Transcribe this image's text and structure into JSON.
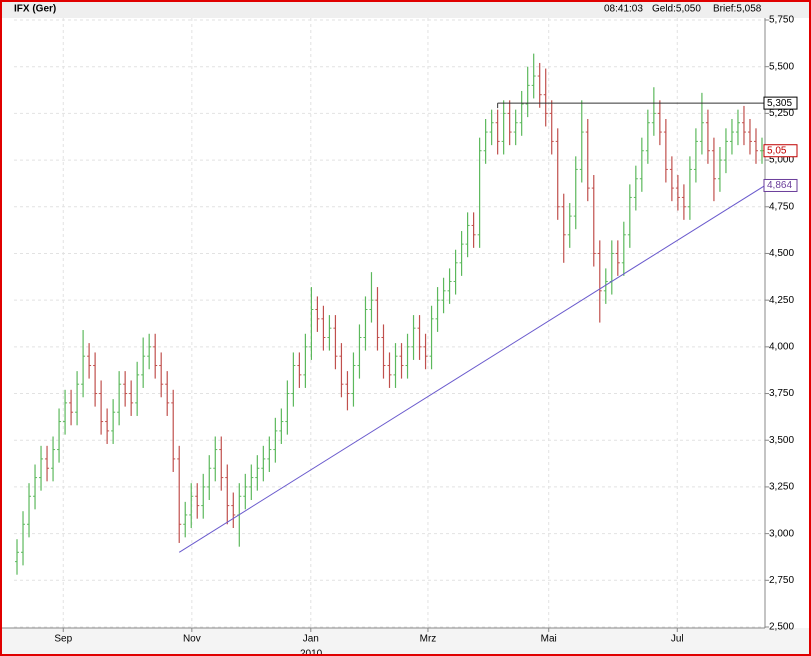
{
  "chart_data": {
    "type": "ohlc",
    "title": "IFX (Ger)",
    "time": "08:41:03",
    "bid": "Geld:5,050",
    "ask": "Brief:5,058",
    "year_label": "2010",
    "up_color": "#5cb85c",
    "down_color": "#c0504d",
    "grid": true,
    "xlim": [
      -0.5,
      124.5
    ],
    "ylim": [
      2.5,
      5.75
    ],
    "yticks": [
      {
        "value": 2.5,
        "label": "2,500"
      },
      {
        "value": 2.75,
        "label": "2,750"
      },
      {
        "value": 3,
        "label": "3,000"
      },
      {
        "value": 3.25,
        "label": "3,250"
      },
      {
        "value": 3.5,
        "label": "3,500"
      },
      {
        "value": 3.75,
        "label": "3,750"
      },
      {
        "value": 4,
        "label": "4,000"
      },
      {
        "value": 4.25,
        "label": "4,250"
      },
      {
        "value": 4.5,
        "label": "4,500"
      },
      {
        "value": 4.75,
        "label": "4,750"
      },
      {
        "value": 5,
        "label": "5,000"
      },
      {
        "value": 5.25,
        "label": "5,250"
      },
      {
        "value": 5.5,
        "label": "5,500"
      },
      {
        "value": 5.75,
        "label": "5,750"
      }
    ],
    "xticks": [
      {
        "value": 7.7,
        "label": "Sep"
      },
      {
        "value": 29.1,
        "label": "Nov"
      },
      {
        "value": 48.9,
        "label": "Jan"
      },
      {
        "value": 68.4,
        "label": "Mrz"
      },
      {
        "value": 88.5,
        "label": "Mai"
      },
      {
        "value": 109.9,
        "label": "Jul"
      }
    ],
    "trendline": {
      "x": [
        27,
        124.5
      ],
      "y": [
        2.9,
        4.864
      ],
      "color": "#6a5acd"
    },
    "resistance": {
      "x": [
        80,
        124.5
      ],
      "y": 5.305,
      "color": "#333333"
    },
    "price_labels": [
      {
        "value": 5.305,
        "label": "5,305",
        "color": "#000000"
      },
      {
        "value": 5.05,
        "label": "5,05",
        "color": "#c00000"
      },
      {
        "value": 4.864,
        "label": "4,864",
        "color": "#6a3d9a"
      }
    ],
    "x": [
      0,
      1,
      2,
      3,
      4,
      5,
      6,
      7,
      8,
      9,
      10,
      11,
      12,
      13,
      14,
      15,
      16,
      17,
      18,
      19,
      20,
      21,
      22,
      23,
      24,
      25,
      26,
      27,
      28,
      29,
      30,
      31,
      32,
      33,
      34,
      35,
      36,
      37,
      38,
      39,
      40,
      41,
      42,
      43,
      44,
      45,
      46,
      47,
      48,
      49,
      50,
      51,
      52,
      53,
      54,
      55,
      56,
      57,
      58,
      59,
      60,
      61,
      62,
      63,
      64,
      65,
      66,
      67,
      68,
      69,
      70,
      71,
      72,
      73,
      74,
      75,
      76,
      77,
      78,
      79,
      80,
      81,
      82,
      83,
      84,
      85,
      86,
      87,
      88,
      89,
      90,
      91,
      92,
      93,
      94,
      95,
      96,
      97,
      98,
      99,
      100,
      101,
      102,
      103,
      104,
      105,
      106,
      107,
      108,
      109,
      110,
      111,
      112,
      113,
      114,
      115,
      116,
      117,
      118,
      119,
      120,
      121,
      122,
      123,
      124
    ],
    "open": [
      2.85,
      2.9,
      3.05,
      3.2,
      3.3,
      3.4,
      3.35,
      3.45,
      3.6,
      3.7,
      3.65,
      3.8,
      3.95,
      3.9,
      3.75,
      3.6,
      3.55,
      3.65,
      3.8,
      3.75,
      3.7,
      3.85,
      3.95,
      4.0,
      3.9,
      3.8,
      3.7,
      3.4,
      3.05,
      3.1,
      3.2,
      3.15,
      3.25,
      3.35,
      3.45,
      3.3,
      3.15,
      3.1,
      3.2,
      3.25,
      3.3,
      3.35,
      3.4,
      3.45,
      3.55,
      3.6,
      3.75,
      3.9,
      3.85,
      4.0,
      4.2,
      4.15,
      4.05,
      4.1,
      3.95,
      3.8,
      3.75,
      3.9,
      4.05,
      4.2,
      4.25,
      4.05,
      3.9,
      3.85,
      3.95,
      3.9,
      4.0,
      4.1,
      4.0,
      3.95,
      4.15,
      4.25,
      4.3,
      4.35,
      4.45,
      4.55,
      4.65,
      4.6,
      5.05,
      5.15,
      5.2,
      5.1,
      5.25,
      5.15,
      5.2,
      5.3,
      5.4,
      5.45,
      5.35,
      5.25,
      5.1,
      4.75,
      4.6,
      4.7,
      4.95,
      5.15,
      4.85,
      4.5,
      4.3,
      4.35,
      4.5,
      4.45,
      4.6,
      4.8,
      4.9,
      5.05,
      5.2,
      5.25,
      5.15,
      4.95,
      4.85,
      4.8,
      4.75,
      4.95,
      5.1,
      5.2,
      5.05,
      4.9,
      5.0,
      5.1,
      5.15,
      5.2,
      5.15,
      5.1,
      5.05
    ],
    "high": [
      2.97,
      3.12,
      3.27,
      3.37,
      3.47,
      3.47,
      3.52,
      3.67,
      3.77,
      3.77,
      3.87,
      4.09,
      4.02,
      3.97,
      3.82,
      3.67,
      3.72,
      3.87,
      3.87,
      3.82,
      3.92,
      4.05,
      4.07,
      4.07,
      3.97,
      3.87,
      3.77,
      3.47,
      3.17,
      3.27,
      3.27,
      3.32,
      3.42,
      3.52,
      3.52,
      3.37,
      3.22,
      3.27,
      3.32,
      3.37,
      3.42,
      3.47,
      3.52,
      3.62,
      3.67,
      3.82,
      3.97,
      3.97,
      4.07,
      4.32,
      4.27,
      4.22,
      4.17,
      4.17,
      4.02,
      3.87,
      3.97,
      4.12,
      4.27,
      4.4,
      4.32,
      4.12,
      3.97,
      4.02,
      4.02,
      4.07,
      4.17,
      4.17,
      4.07,
      4.22,
      4.32,
      4.37,
      4.42,
      4.52,
      4.62,
      4.72,
      4.72,
      5.12,
      5.22,
      5.27,
      5.27,
      5.32,
      5.32,
      5.27,
      5.37,
      5.5,
      5.57,
      5.52,
      5.49,
      5.32,
      5.17,
      4.82,
      4.77,
      5.02,
      5.32,
      5.22,
      4.92,
      4.57,
      4.42,
      4.57,
      4.57,
      4.67,
      4.87,
      4.97,
      5.12,
      5.27,
      5.39,
      5.32,
      5.22,
      5.02,
      4.92,
      4.87,
      5.02,
      5.17,
      5.36,
      5.27,
      5.12,
      5.07,
      5.17,
      5.22,
      5.27,
      5.29,
      5.22,
      5.17,
      5.12
    ],
    "low": [
      2.78,
      2.83,
      2.98,
      3.13,
      3.23,
      3.28,
      3.28,
      3.38,
      3.53,
      3.58,
      3.58,
      3.73,
      3.83,
      3.68,
      3.53,
      3.48,
      3.48,
      3.58,
      3.68,
      3.63,
      3.63,
      3.78,
      3.88,
      3.83,
      3.73,
      3.63,
      3.33,
      2.95,
      2.98,
      3.03,
      3.08,
      3.08,
      3.18,
      3.28,
      3.23,
      3.05,
      3.03,
      2.93,
      3.13,
      3.18,
      3.23,
      3.28,
      3.33,
      3.38,
      3.48,
      3.53,
      3.68,
      3.78,
      3.78,
      3.93,
      4.08,
      3.98,
      3.98,
      3.88,
      3.73,
      3.66,
      3.68,
      3.83,
      3.98,
      4.13,
      3.98,
      3.83,
      3.78,
      3.78,
      3.83,
      3.83,
      3.93,
      3.93,
      3.88,
      3.88,
      4.08,
      4.18,
      4.23,
      4.28,
      4.38,
      4.48,
      4.53,
      4.53,
      4.98,
      5.08,
      5.03,
      5.03,
      5.08,
      5.08,
      5.13,
      5.23,
      5.33,
      5.28,
      5.18,
      5.03,
      4.68,
      4.45,
      4.53,
      4.63,
      4.88,
      4.78,
      4.43,
      4.13,
      4.23,
      4.28,
      4.38,
      4.38,
      4.53,
      4.73,
      4.83,
      4.98,
      5.13,
      5.08,
      4.88,
      4.78,
      4.73,
      4.68,
      4.68,
      4.88,
      5.03,
      4.98,
      4.78,
      4.83,
      4.93,
      5.03,
      5.08,
      5.08,
      5.03,
      4.98,
      4.98
    ],
    "close": [
      2.9,
      3.05,
      3.2,
      3.3,
      3.4,
      3.35,
      3.45,
      3.6,
      3.7,
      3.65,
      3.8,
      3.95,
      3.9,
      3.75,
      3.6,
      3.55,
      3.65,
      3.8,
      3.75,
      3.7,
      3.85,
      3.95,
      4.0,
      3.9,
      3.8,
      3.7,
      3.4,
      3.05,
      3.1,
      3.2,
      3.15,
      3.25,
      3.35,
      3.45,
      3.3,
      3.15,
      3.1,
      3.2,
      3.25,
      3.3,
      3.35,
      3.4,
      3.45,
      3.55,
      3.6,
      3.75,
      3.9,
      3.85,
      4.0,
      4.2,
      4.15,
      4.05,
      4.1,
      3.95,
      3.8,
      3.75,
      3.9,
      4.05,
      4.2,
      4.25,
      4.05,
      3.9,
      3.85,
      3.95,
      3.9,
      4.0,
      4.1,
      4.0,
      3.95,
      4.15,
      4.25,
      4.3,
      4.35,
      4.45,
      4.55,
      4.65,
      4.6,
      5.05,
      5.15,
      5.2,
      5.1,
      5.25,
      5.15,
      5.2,
      5.3,
      5.4,
      5.45,
      5.35,
      5.25,
      5.1,
      4.75,
      4.6,
      4.7,
      4.95,
      5.15,
      4.85,
      4.5,
      4.3,
      4.35,
      4.5,
      4.45,
      4.6,
      4.8,
      4.9,
      5.05,
      5.2,
      5.25,
      5.15,
      4.95,
      4.85,
      4.8,
      4.75,
      4.95,
      5.1,
      5.2,
      5.05,
      4.9,
      5.0,
      5.1,
      5.15,
      5.2,
      5.15,
      5.1,
      5.05,
      5.05
    ]
  }
}
